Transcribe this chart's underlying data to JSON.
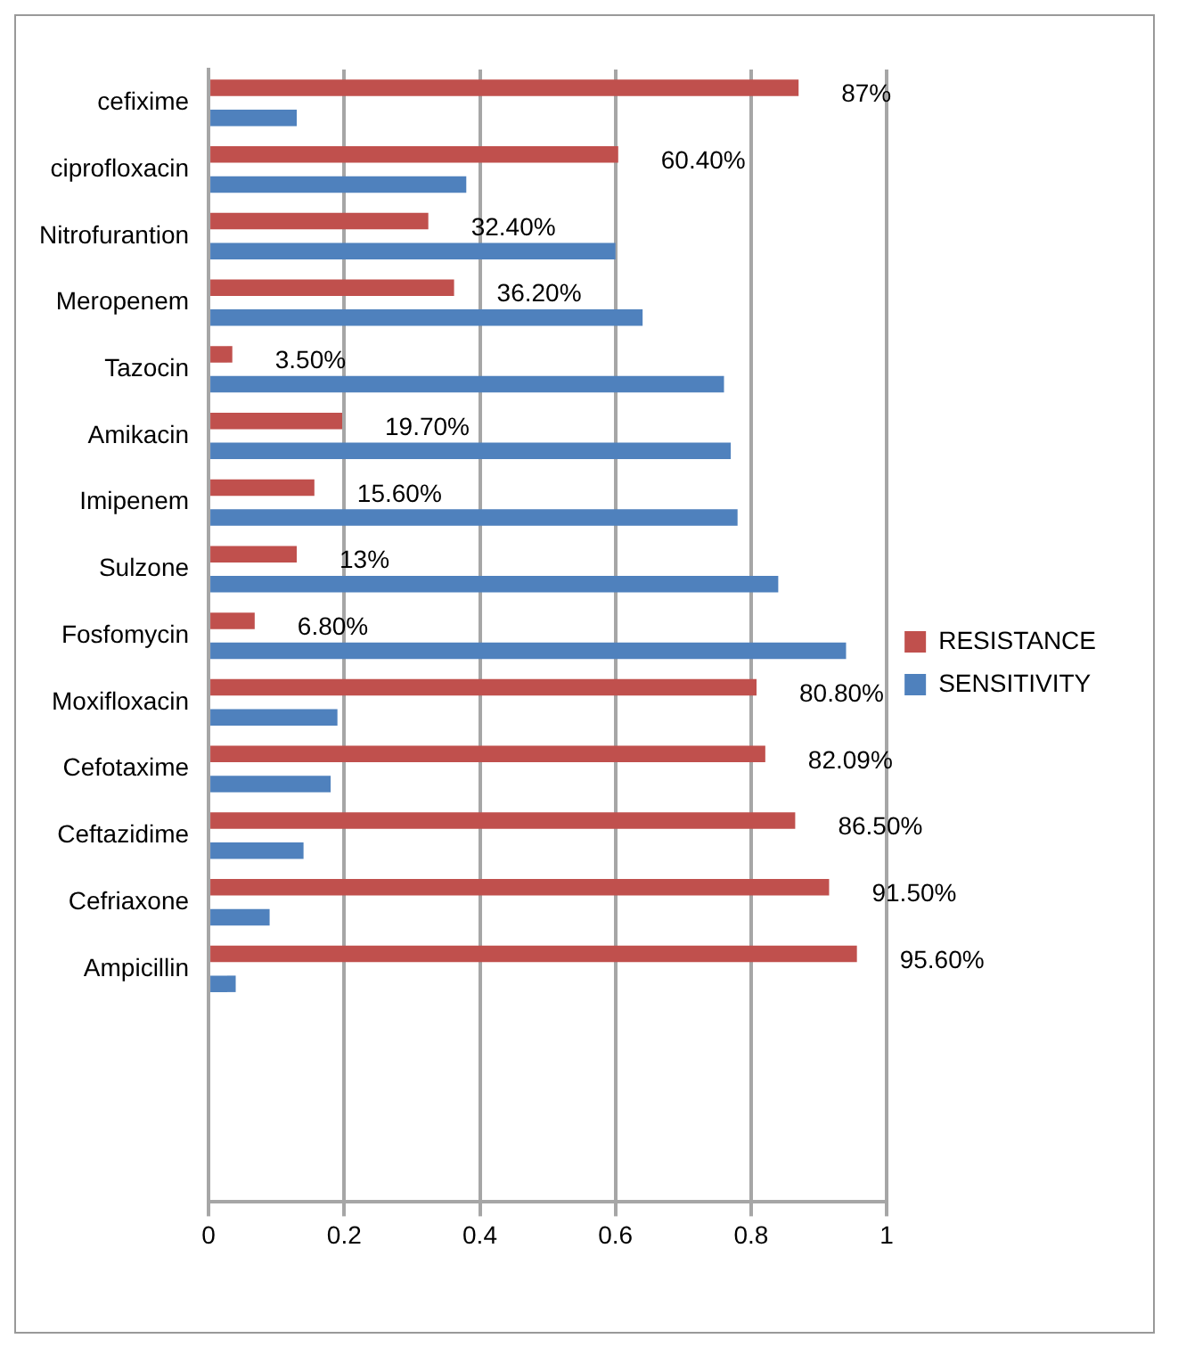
{
  "chart_data": {
    "type": "bar",
    "orientation": "horizontal",
    "categories": [
      "cefixime",
      "ciprofloxacin",
      "Nitrofurantion",
      "Meropenem",
      "Tazocin",
      "Amikacin",
      "Imipenem",
      "Sulzone",
      "Fosfomycin",
      "Moxifloxacin",
      "Cefotaxime",
      "Ceftazidime",
      "Cefriaxone",
      "Ampicillin",
      null,
      null,
      null
    ],
    "series": [
      {
        "name": "RESISTANCE",
        "color": "#c0504d",
        "values": [
          0.87,
          0.604,
          0.324,
          0.362,
          0.035,
          0.197,
          0.156,
          0.13,
          0.068,
          0.808,
          0.8209,
          0.865,
          0.915,
          0.956,
          null,
          null,
          null
        ],
        "value_labels": [
          "87%",
          "60.40%",
          "32.40%",
          "36.20%",
          "3.50%",
          "19.70%",
          "15.60%",
          "13%",
          "6.80%",
          "80.80%",
          "82.09%",
          "86.50%",
          "91.50%",
          "95.60%",
          null,
          null,
          null
        ]
      },
      {
        "name": "SENSITIVITY",
        "color": "#4f81bd",
        "values": [
          0.13,
          0.38,
          0.6,
          0.64,
          0.76,
          0.77,
          0.78,
          0.84,
          0.94,
          0.19,
          0.18,
          0.14,
          0.09,
          0.04,
          null,
          null,
          null
        ]
      }
    ],
    "xlim": [
      0,
      1
    ],
    "xticks": [
      0,
      0.2,
      0.4,
      0.6,
      0.8,
      1
    ],
    "grid": "x",
    "legend": "right"
  }
}
